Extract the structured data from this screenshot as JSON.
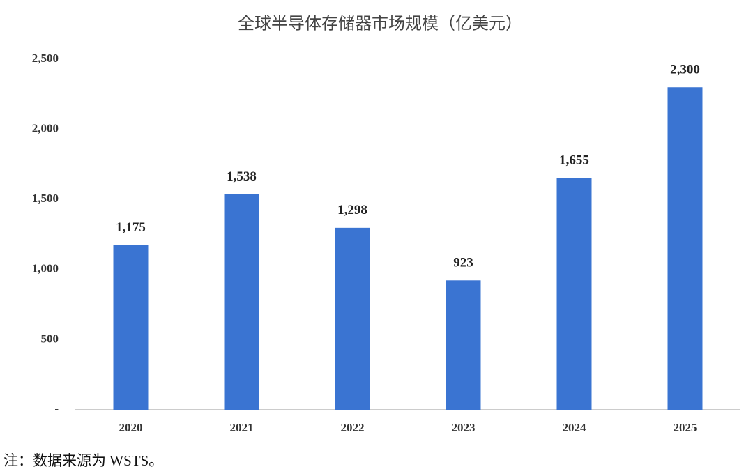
{
  "chart_data": {
    "type": "bar",
    "title": "全球半导体存储器市场规模（亿美元）",
    "categories": [
      "2020",
      "2021",
      "2022",
      "2023",
      "2024",
      "2025"
    ],
    "values": [
      1175,
      1538,
      1298,
      923,
      1655,
      2300
    ],
    "value_labels": [
      "1,175",
      "1,538",
      "1,298",
      "923",
      "1,655",
      "2,300"
    ],
    "color": "#3a74d2",
    "ylim": [
      0,
      2500
    ],
    "yticks": [
      {
        "value": 0,
        "label": "-"
      },
      500,
      {
        "value": 1000,
        "label": "1,000"
      },
      {
        "value": 1500,
        "label": "1,500"
      },
      {
        "value": 2000,
        "label": "2,000"
      },
      {
        "value": 2500,
        "label": "2,500"
      }
    ],
    "grid": false
  },
  "note": "注：数据来源为 WSTS。"
}
